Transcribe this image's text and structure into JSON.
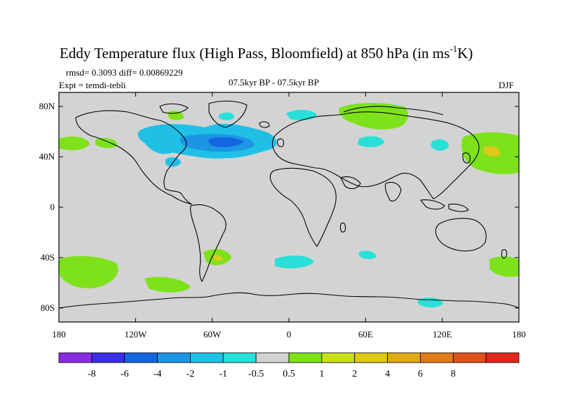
{
  "title": "Eddy Temperature flux (High Pass, Bloomfield) at 850 hPa (in ms",
  "title_sup": "-1",
  "title_end": "K)",
  "stats": "rmsd= 0.3093  diff= 0.00869229",
  "expt": "Expt = temdi-tebli",
  "period": "07.5kyr BP - 07.5kyr BP",
  "season": "DJF",
  "y_ticks": [
    "80N",
    "40N",
    "0",
    "40S",
    "80S"
  ],
  "x_ticks": [
    "180",
    "120W",
    "60W",
    "0",
    "60E",
    "120E",
    "180"
  ],
  "colorbar": {
    "colors": [
      "#8a2be2",
      "#3a2ee6",
      "#1466e0",
      "#1c96e4",
      "#20c0e6",
      "#28e0d8",
      "#d3d3d3",
      "#7ee21a",
      "#c8e01a",
      "#e0c81a",
      "#e0a81a",
      "#e07a1a",
      "#e0501a",
      "#e0281a"
    ],
    "labels": [
      "-8",
      "-6",
      "-4",
      "-2",
      "-1",
      "-0.5",
      "0.5",
      "1",
      "2",
      "4",
      "6",
      "8"
    ]
  },
  "colors": {
    "ocean": "#d3d3d3"
  }
}
